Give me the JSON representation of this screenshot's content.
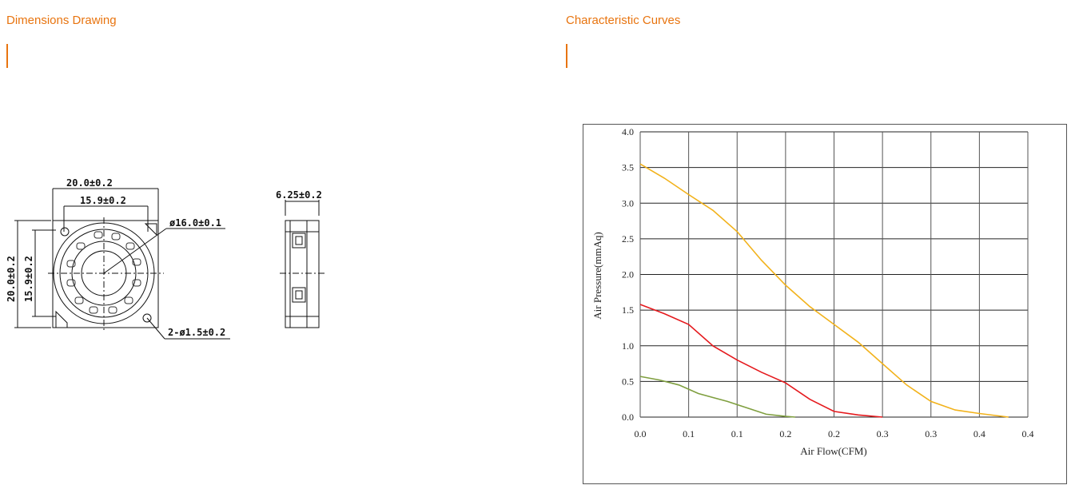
{
  "sections": {
    "left_title": "Dimensions Drawing",
    "right_title": "Characteristic Curves"
  },
  "drawing": {
    "dim_width_outer": "20.0±0.2",
    "dim_width_inner": "15.9±0.2",
    "dim_diameter": "ø16.0±0.1",
    "dim_height_outer": "20.0±0.2",
    "dim_height_inner": "15.9±0.2",
    "dim_holes": "2-ø1.5±0.2",
    "dim_thickness": "6.25±0.2"
  },
  "chart_data": {
    "type": "line",
    "title": "",
    "xlabel": "Air Flow(CFM)",
    "ylabel": "Air Pressure(mmAq)",
    "xlim": [
      0,
      0.4
    ],
    "ylim": [
      0,
      4.0
    ],
    "x_ticks": [
      "0.0",
      "0.1",
      "0.1",
      "0.2",
      "0.2",
      "0.3",
      "0.3",
      "0.4",
      "0.4"
    ],
    "y_ticks": [
      "0.0",
      "0.5",
      "1.0",
      "1.5",
      "2.0",
      "2.5",
      "3.0",
      "3.5",
      "4.0"
    ],
    "grid": true,
    "series": [
      {
        "color": "#f2b21b",
        "x": [
          0.0,
          0.05,
          0.1,
          0.15,
          0.2,
          0.25,
          0.3,
          0.35,
          0.4,
          0.38
        ],
        "y": [
          3.55,
          3.1,
          2.6,
          1.9,
          1.3,
          0.8,
          0.2,
          0.05,
          0.0,
          0.0
        ],
        "points": [
          [
            0.0,
            3.55
          ],
          [
            0.025,
            3.35
          ],
          [
            0.05,
            3.12
          ],
          [
            0.075,
            2.9
          ],
          [
            0.1,
            2.6
          ],
          [
            0.125,
            2.2
          ],
          [
            0.15,
            1.85
          ],
          [
            0.175,
            1.55
          ],
          [
            0.2,
            1.3
          ],
          [
            0.225,
            1.05
          ],
          [
            0.25,
            0.75
          ],
          [
            0.275,
            0.45
          ],
          [
            0.3,
            0.22
          ],
          [
            0.325,
            0.1
          ],
          [
            0.35,
            0.05
          ],
          [
            0.38,
            0.0
          ]
        ]
      },
      {
        "color": "#e5191d",
        "points": [
          [
            0.0,
            1.58
          ],
          [
            0.025,
            1.45
          ],
          [
            0.05,
            1.3
          ],
          [
            0.075,
            1.0
          ],
          [
            0.1,
            0.8
          ],
          [
            0.125,
            0.63
          ],
          [
            0.15,
            0.48
          ],
          [
            0.175,
            0.25
          ],
          [
            0.2,
            0.08
          ],
          [
            0.225,
            0.03
          ],
          [
            0.25,
            0.0
          ]
        ]
      },
      {
        "color": "#7f9f3f",
        "points": [
          [
            0.0,
            0.57
          ],
          [
            0.02,
            0.52
          ],
          [
            0.04,
            0.45
          ],
          [
            0.06,
            0.33
          ],
          [
            0.09,
            0.22
          ],
          [
            0.11,
            0.13
          ],
          [
            0.13,
            0.04
          ],
          [
            0.15,
            0.01
          ],
          [
            0.16,
            0.0
          ]
        ]
      }
    ]
  }
}
